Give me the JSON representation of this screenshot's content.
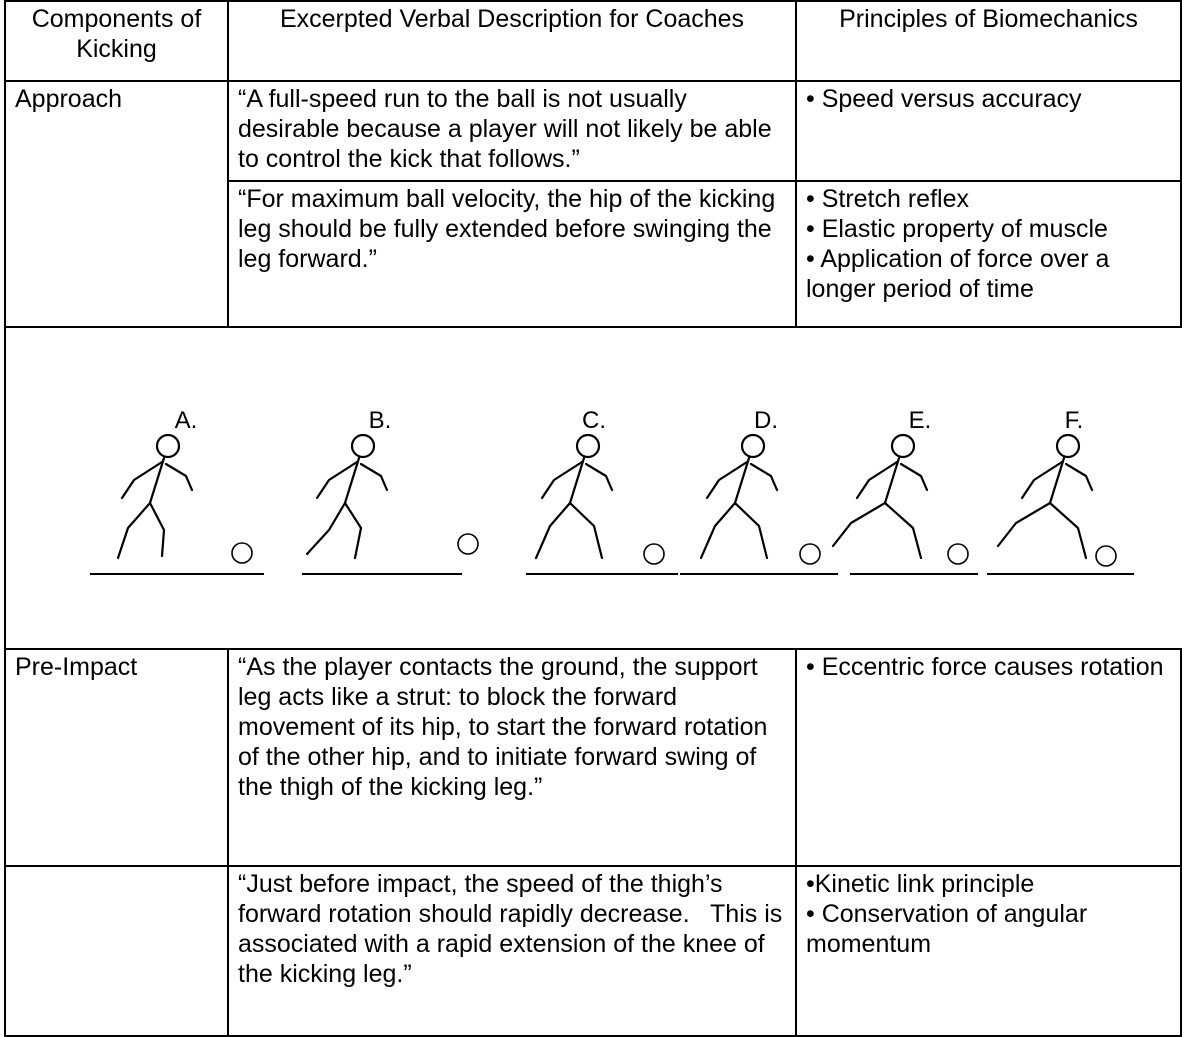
{
  "table": {
    "header": [
      "Components of Kicking",
      "Excerpted Verbal Description for Coaches",
      "Principles of Biomechanics"
    ],
    "rows": [
      {
        "component": "Approach",
        "description": "“A full-speed run to the ball is not usually desirable because a player will not likely be able to control the kick that follows.”",
        "principles": [
          "• Speed versus accuracy"
        ]
      },
      {
        "description": "“For maximum ball velocity, the hip of the kicking leg should be fully extended before swinging the leg forward.”",
        "principles": [
          "• Stretch reflex",
          "• Elastic property of muscle",
          "• Application of force over a longer period of time"
        ]
      },
      {
        "component": "Pre-Impact",
        "description": "“As the player contacts the ground, the support leg acts like a strut: to block the forward movement of its hip, to start the forward rotation of the other hip, and to initiate forward swing of the thigh of the kicking leg.”",
        "principles": [
          "• Eccentric force causes rotation"
        ]
      },
      {
        "description": "“Just before impact, the speed of the thigh’s forward rotation should rapidly decrease.   This is associated with a rapid extension of the knee of the kicking leg.”",
        "principles": [
          "•Kinetic link principle",
          "• Conservation of angular momentum"
        ]
      }
    ]
  },
  "figure": {
    "labels": [
      "A.",
      "B.",
      "C.",
      "D.",
      "E.",
      "F."
    ]
  }
}
